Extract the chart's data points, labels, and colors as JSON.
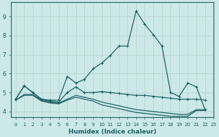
{
  "title": "",
  "xlabel": "Humidex (Indice chaleur)",
  "ylabel": "",
  "background_color": "#cce8e8",
  "grid_color": "#b8d0d0",
  "line_color": "#1a6060",
  "xlim": [
    -0.5,
    23
  ],
  "ylim": [
    3.7,
    9.75
  ],
  "yticks": [
    4,
    5,
    6,
    7,
    8,
    9
  ],
  "xticks": [
    0,
    1,
    2,
    3,
    4,
    5,
    6,
    7,
    8,
    9,
    10,
    11,
    12,
    13,
    14,
    15,
    16,
    17,
    18,
    19,
    20,
    21,
    22,
    23
  ],
  "series": [
    {
      "x": [
        0,
        1,
        2,
        3,
        4,
        5,
        6,
        7,
        8,
        9,
        10,
        11,
        12,
        13,
        14,
        15,
        16,
        17,
        18,
        19,
        20,
        21,
        22
      ],
      "y": [
        4.65,
        5.35,
        5.0,
        4.65,
        4.6,
        4.6,
        5.85,
        5.5,
        5.7,
        6.25,
        6.55,
        6.95,
        7.45,
        7.45,
        9.3,
        8.6,
        8.05,
        7.45,
        5.0,
        4.8,
        5.5,
        5.3,
        4.1
      ],
      "marker": "+"
    },
    {
      "x": [
        0,
        1,
        2,
        3,
        4,
        5,
        6,
        7,
        8,
        9,
        10,
        11,
        12,
        13,
        14,
        15,
        16,
        17,
        18,
        19,
        20,
        21,
        22
      ],
      "y": [
        4.65,
        5.35,
        5.0,
        4.65,
        4.55,
        4.5,
        5.0,
        5.3,
        5.0,
        5.0,
        5.05,
        5.0,
        4.95,
        4.9,
        4.85,
        4.85,
        4.8,
        4.75,
        4.7,
        4.65,
        4.65,
        4.65,
        4.6
      ],
      "marker": "+"
    },
    {
      "x": [
        0,
        1,
        2,
        3,
        4,
        5,
        6,
        7,
        8,
        9,
        10,
        11,
        12,
        13,
        14,
        15,
        16,
        17,
        18,
        19,
        20,
        21,
        22
      ],
      "y": [
        4.6,
        4.9,
        4.9,
        4.6,
        4.5,
        4.45,
        4.65,
        4.85,
        4.75,
        4.65,
        4.5,
        4.4,
        4.3,
        4.2,
        4.1,
        4.05,
        4.0,
        3.95,
        3.9,
        3.85,
        3.85,
        4.1,
        4.1
      ],
      "marker": null
    },
    {
      "x": [
        0,
        1,
        2,
        3,
        4,
        5,
        6,
        7,
        8,
        9,
        10,
        11,
        12,
        13,
        14,
        15,
        16,
        17,
        18,
        19,
        20,
        21,
        22
      ],
      "y": [
        4.6,
        4.85,
        4.85,
        4.55,
        4.45,
        4.4,
        4.6,
        4.75,
        4.65,
        4.55,
        4.35,
        4.25,
        4.15,
        4.05,
        3.95,
        3.9,
        3.85,
        3.8,
        3.75,
        3.75,
        3.75,
        4.05,
        4.05
      ],
      "marker": null
    }
  ]
}
